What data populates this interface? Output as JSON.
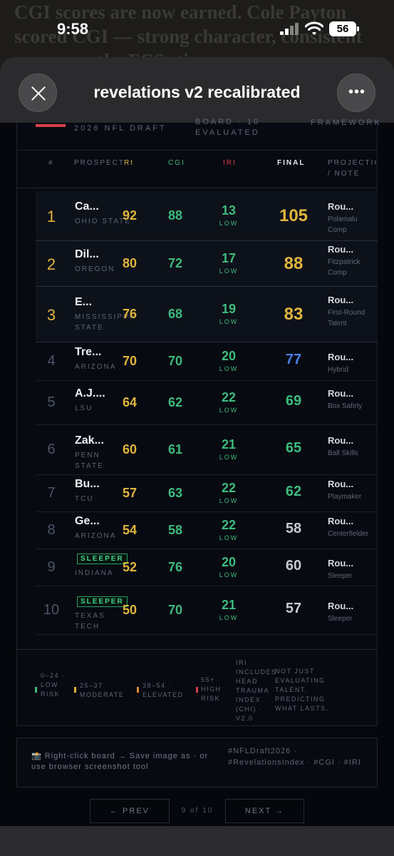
{
  "status": {
    "time": "9:58",
    "battery": "56"
  },
  "behind_text": "CGI scores are now earned. Cole Payton scored CGI — strong character, consistent overcame the FCS stigma",
  "sheet": {
    "title": "revelations v2 recalibrated"
  },
  "board_top": {
    "draft": "2026 NFL DRAFT",
    "board": "BOARD · 10 EVALUATED",
    "framework": "FRAMEWORK"
  },
  "columns": {
    "rank": "#",
    "prospect": "PROSPECT",
    "ri": "RI",
    "cgi": "CGI",
    "iri": "IRI",
    "final": "FINAL",
    "projection": "PROJECTION / NOTE"
  },
  "rows": [
    {
      "rank": "1",
      "name": "Ca...",
      "school": "OHIO STATE",
      "ri": "92",
      "cgi": "88",
      "iri": "13",
      "risk": "LOW",
      "final": "105",
      "proj": "Rou...",
      "note": "Polamalu Comp"
    },
    {
      "rank": "2",
      "name": "Dil...",
      "school": "OREGON",
      "ri": "80",
      "cgi": "72",
      "iri": "17",
      "risk": "LOW",
      "final": "88",
      "proj": "Rou...",
      "note": "Fitzpatrick Comp"
    },
    {
      "rank": "3",
      "name": "E...",
      "school": "MISSISSIPPI STATE",
      "ri": "76",
      "cgi": "68",
      "iri": "19",
      "risk": "LOW",
      "final": "83",
      "proj": "Rou...",
      "note": "First-Round Talent"
    },
    {
      "rank": "4",
      "name": "Tre...",
      "school": "ARIZONA",
      "ri": "70",
      "cgi": "70",
      "iri": "20",
      "risk": "LOW",
      "final": "77",
      "proj": "Rou...",
      "note": "Hybrid"
    },
    {
      "rank": "5",
      "name": "A.J....",
      "school": "LSU",
      "ri": "64",
      "cgi": "62",
      "iri": "22",
      "risk": "LOW",
      "final": "69",
      "proj": "Rou...",
      "note": "Box Safety"
    },
    {
      "rank": "6",
      "name": "Zak...",
      "school": "PENN STATE",
      "ri": "60",
      "cgi": "61",
      "iri": "21",
      "risk": "LOW",
      "final": "65",
      "proj": "Rou...",
      "note": "Ball Skills"
    },
    {
      "rank": "7",
      "name": "Bu...",
      "school": "TCU",
      "ri": "57",
      "cgi": "63",
      "iri": "22",
      "risk": "LOW",
      "final": "62",
      "proj": "Rou...",
      "note": "Playmaker"
    },
    {
      "rank": "8",
      "name": "Ge...",
      "school": "ARIZONA",
      "ri": "54",
      "cgi": "58",
      "iri": "22",
      "risk": "LOW",
      "final": "58",
      "proj": "Rou...",
      "note": "Centerfielder"
    },
    {
      "rank": "9",
      "badge": "SLEEPER",
      "school": "INDIANA",
      "ri": "52",
      "cgi": "76",
      "iri": "20",
      "risk": "LOW",
      "final": "60",
      "proj": "Rou...",
      "note": "Sleeper"
    },
    {
      "rank": "10",
      "badge": "SLEEPER",
      "school": "TEXAS TECH",
      "ri": "50",
      "cgi": "70",
      "iri": "21",
      "risk": "LOW",
      "final": "57",
      "proj": "Rou...",
      "note": "Sleeper"
    }
  ],
  "legend": {
    "low": "0–24 · LOW RISK",
    "moderate": "25–37 · MODERATE",
    "elevated": "38–54 · ELEVATED",
    "high": "55+ · HIGH RISK",
    "iri_note": "IRI INCLUDES HEAD TRAUMA INDEX (CHI) · V2.0",
    "tagline": "NOT JUST EVALUATING TALENT. PREDICTING WHAT LASTS.",
    "colors": {
      "low": "#3dbb7d",
      "moderate": "#e2b53d",
      "elevated": "#e08a3a",
      "high": "#d6404b"
    }
  },
  "export": {
    "text": "📸 Right-click board → Save image as · or use browser screenshot tool",
    "tags": "#NFLDraft2026 · #RevelationsIndex · #CGI · #IRI"
  },
  "pagination": {
    "prev": "← PREV",
    "count": "9 of 10",
    "next": "NEXT →"
  },
  "final_colors": {
    "gold": "#e2b53d",
    "green": "#3dbb7d",
    "blue": "#4a7fe6",
    "gray": "#c5cad3"
  }
}
